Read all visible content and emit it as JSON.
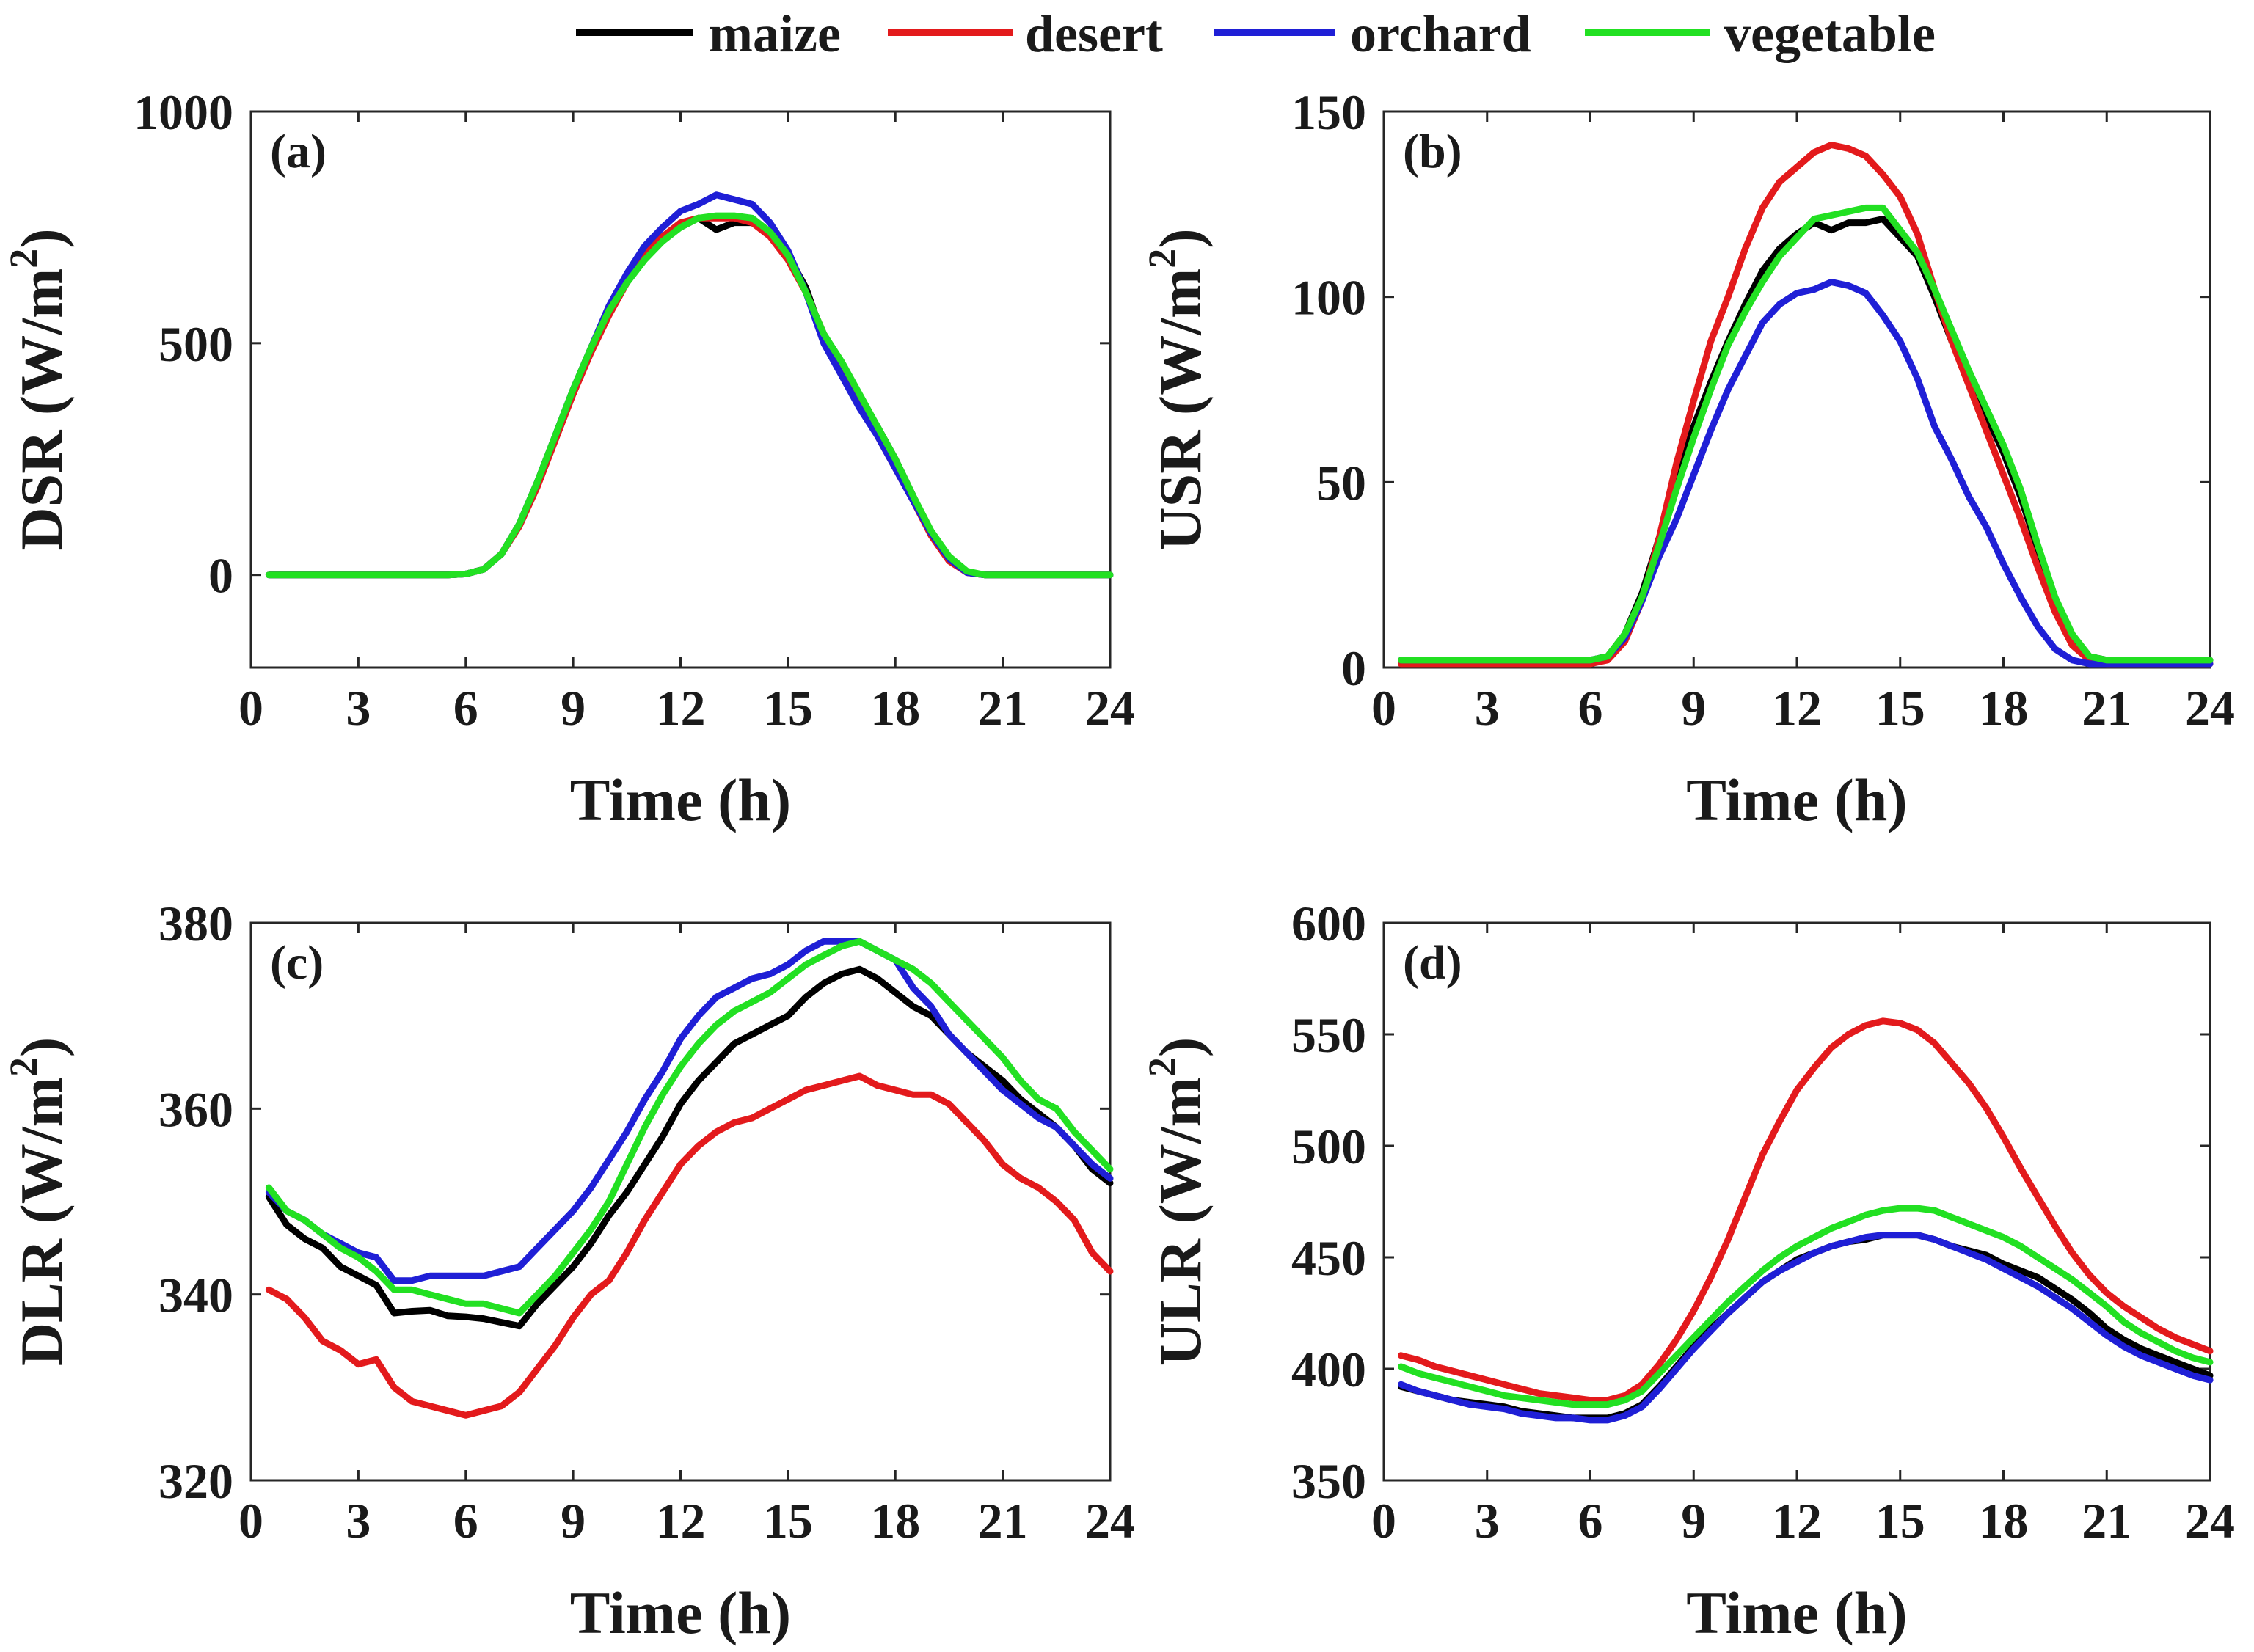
{
  "chart_data": [
    {
      "panel": "(a)",
      "type": "line",
      "ylabel_main": "DSR (W/m",
      "ylabel_sup": "2",
      "ylabel_end": ")",
      "xlabel": "Time (h)",
      "xlim": [
        0,
        24
      ],
      "ylim": [
        -200,
        1000
      ],
      "xticks": [
        0,
        3,
        6,
        9,
        12,
        15,
        18,
        21,
        24
      ],
      "yticks": [
        0,
        500,
        1000
      ],
      "x": [
        0.5,
        1,
        1.5,
        2,
        2.5,
        3,
        3.5,
        4,
        4.5,
        5,
        5.5,
        6,
        6.5,
        7,
        7.5,
        8,
        8.5,
        9,
        9.5,
        10,
        10.5,
        11,
        11.5,
        12,
        12.5,
        13,
        13.5,
        14,
        14.5,
        15,
        15.5,
        16,
        16.5,
        17,
        17.5,
        18,
        18.5,
        19,
        19.5,
        20,
        20.5,
        21,
        21.5,
        22,
        22.5,
        23,
        23.5,
        24
      ],
      "series": [
        {
          "name": "maize",
          "values": [
            0,
            0,
            0,
            0,
            0,
            0,
            0,
            0,
            0,
            0,
            0,
            2,
            12,
            45,
            110,
            200,
            300,
            400,
            490,
            570,
            640,
            700,
            730,
            750,
            770,
            745,
            760,
            760,
            740,
            690,
            620,
            510,
            450,
            380,
            320,
            250,
            170,
            90,
            35,
            5,
            0,
            0,
            0,
            0,
            0,
            0,
            0,
            0
          ]
        },
        {
          "name": "desert",
          "values": [
            0,
            0,
            0,
            0,
            0,
            0,
            0,
            0,
            0,
            0,
            0,
            2,
            12,
            45,
            105,
            190,
            290,
            390,
            480,
            560,
            630,
            690,
            730,
            760,
            770,
            770,
            770,
            760,
            730,
            680,
            610,
            520,
            450,
            370,
            300,
            230,
            160,
            85,
            30,
            5,
            0,
            0,
            0,
            0,
            0,
            0,
            0,
            0
          ]
        },
        {
          "name": "orchard",
          "values": [
            0,
            0,
            0,
            0,
            0,
            0,
            0,
            0,
            0,
            0,
            0,
            2,
            12,
            45,
            110,
            200,
            300,
            400,
            490,
            580,
            650,
            710,
            750,
            785,
            800,
            820,
            810,
            800,
            760,
            700,
            610,
            500,
            430,
            360,
            300,
            230,
            160,
            90,
            35,
            5,
            0,
            0,
            0,
            0,
            0,
            0,
            0,
            0
          ]
        },
        {
          "name": "vegetable",
          "values": [
            0,
            0,
            0,
            0,
            0,
            0,
            0,
            0,
            0,
            0,
            0,
            2,
            12,
            45,
            110,
            200,
            300,
            400,
            490,
            570,
            630,
            680,
            720,
            750,
            770,
            775,
            775,
            770,
            740,
            690,
            610,
            520,
            460,
            390,
            320,
            250,
            170,
            95,
            40,
            8,
            0,
            0,
            0,
            0,
            0,
            0,
            0,
            0
          ]
        }
      ]
    },
    {
      "panel": "(b)",
      "type": "line",
      "ylabel_main": "USR (W/m",
      "ylabel_sup": "2",
      "ylabel_end": ")",
      "xlabel": "Time (h)",
      "xlim": [
        0,
        24
      ],
      "ylim": [
        0,
        150
      ],
      "xticks": [
        0,
        3,
        6,
        9,
        12,
        15,
        18,
        21,
        24
      ],
      "yticks": [
        0,
        50,
        100,
        150
      ],
      "x": [
        0.5,
        1,
        1.5,
        2,
        2.5,
        3,
        3.5,
        4,
        4.5,
        5,
        5.5,
        6,
        6.5,
        7,
        7.5,
        8,
        8.5,
        9,
        9.5,
        10,
        10.5,
        11,
        11.5,
        12,
        12.5,
        13,
        13.5,
        14,
        14.5,
        15,
        15.5,
        16,
        16.5,
        17,
        17.5,
        18,
        18.5,
        19,
        19.5,
        20,
        20.5,
        21,
        21.5,
        22,
        22.5,
        23,
        23.5,
        24
      ],
      "series": [
        {
          "name": "maize",
          "values": [
            2,
            2,
            2,
            2,
            2,
            2,
            2,
            2,
            2,
            2,
            2,
            2,
            3,
            9,
            20,
            35,
            50,
            65,
            77,
            88,
            98,
            107,
            113,
            117,
            120,
            118,
            120,
            120,
            121,
            116,
            111,
            100,
            88,
            78,
            68,
            58,
            46,
            32,
            18,
            8,
            3,
            2,
            2,
            2,
            2,
            2,
            2,
            2
          ]
        },
        {
          "name": "desert",
          "values": [
            1,
            1,
            1,
            1,
            1,
            1,
            1,
            1,
            1,
            1,
            1,
            1,
            2,
            7,
            18,
            35,
            55,
            72,
            88,
            100,
            113,
            124,
            131,
            135,
            139,
            141,
            140,
            138,
            133,
            127,
            117,
            102,
            88,
            76,
            64,
            52,
            40,
            27,
            15,
            6,
            2,
            1,
            1,
            1,
            1,
            1,
            1,
            1
          ]
        },
        {
          "name": "orchard",
          "values": [
            2,
            2,
            2,
            2,
            2,
            2,
            2,
            2,
            2,
            2,
            2,
            2,
            3,
            8,
            18,
            30,
            40,
            52,
            64,
            75,
            84,
            93,
            98,
            101,
            102,
            104,
            103,
            101,
            95,
            88,
            78,
            65,
            56,
            46,
            38,
            28,
            19,
            11,
            5,
            2,
            1,
            1,
            1,
            1,
            1,
            1,
            1,
            1
          ]
        },
        {
          "name": "vegetable",
          "values": [
            2,
            2,
            2,
            2,
            2,
            2,
            2,
            2,
            2,
            2,
            2,
            2,
            3,
            9,
            19,
            33,
            48,
            62,
            75,
            87,
            96,
            104,
            111,
            116,
            121,
            122,
            123,
            124,
            124,
            118,
            112,
            102,
            91,
            80,
            70,
            60,
            48,
            33,
            19,
            9,
            3,
            2,
            2,
            2,
            2,
            2,
            2,
            2
          ]
        }
      ]
    },
    {
      "panel": "(c)",
      "type": "line",
      "ylabel_main": "DLR (W/m",
      "ylabel_sup": "2",
      "ylabel_end": ")",
      "xlabel": "Time (h)",
      "xlim": [
        0,
        24
      ],
      "ylim": [
        320,
        380
      ],
      "xticks": [
        0,
        3,
        6,
        9,
        12,
        15,
        18,
        21,
        24
      ],
      "yticks": [
        320,
        340,
        360,
        380
      ],
      "x": [
        0.5,
        1,
        1.5,
        2,
        2.5,
        3,
        3.5,
        4,
        4.5,
        5,
        5.5,
        6,
        6.5,
        7,
        7.5,
        8,
        8.5,
        9,
        9.5,
        10,
        10.5,
        11,
        11.5,
        12,
        12.5,
        13,
        13.5,
        14,
        14.5,
        15,
        15.5,
        16,
        16.5,
        17,
        17.5,
        18,
        18.5,
        19,
        19.5,
        20,
        20.5,
        21,
        21.5,
        22,
        22.5,
        23,
        23.5,
        24
      ],
      "series": [
        {
          "name": "maize",
          "values": [
            350.5,
            347.5,
            346,
            345,
            343,
            342,
            341,
            338,
            338.2,
            338.3,
            337.7,
            337.6,
            337.4,
            337,
            336.6,
            339,
            341,
            343,
            345.5,
            348.5,
            351,
            354,
            357,
            360.5,
            363,
            365,
            367,
            368,
            369,
            370,
            372,
            373.5,
            374.5,
            375,
            374,
            372.5,
            371,
            370,
            368,
            366,
            364.5,
            363,
            361,
            359.5,
            358,
            356,
            353.5,
            352
          ]
        },
        {
          "name": "desert",
          "values": [
            340.5,
            339.5,
            337.5,
            335,
            334,
            332.5,
            333,
            330,
            328.5,
            328,
            327.5,
            327,
            327.5,
            328,
            329.5,
            332,
            334.5,
            337.5,
            340,
            341.5,
            344.5,
            348,
            351,
            354,
            356,
            357.5,
            358.5,
            359,
            360,
            361,
            362,
            362.5,
            363,
            363.5,
            362.5,
            362,
            361.5,
            361.5,
            360.5,
            358.5,
            356.5,
            354,
            352.5,
            351.5,
            350,
            348,
            344.5,
            342.5
          ]
        },
        {
          "name": "orchard",
          "values": [
            351,
            349,
            348,
            346.5,
            345.5,
            344.5,
            344,
            341.5,
            341.5,
            342,
            342,
            342,
            342,
            342.5,
            343,
            345,
            347,
            349,
            351.5,
            354.5,
            357.5,
            361,
            364,
            367.5,
            370,
            372,
            373,
            374,
            374.5,
            375.5,
            377,
            378,
            378,
            378,
            377,
            376,
            373,
            371,
            368,
            366,
            364,
            362,
            360.5,
            359,
            358,
            356,
            354,
            352.5
          ]
        },
        {
          "name": "vegetable",
          "values": [
            351.5,
            349,
            348,
            346.5,
            345,
            344,
            342.5,
            340.5,
            340.5,
            340,
            339.5,
            339,
            339,
            338.5,
            338,
            340,
            342,
            344.5,
            347,
            350,
            354,
            358,
            361.5,
            364.5,
            367,
            369,
            370.5,
            371.5,
            372.5,
            374,
            375.5,
            376.5,
            377.5,
            378,
            377,
            376,
            375,
            373.5,
            371.5,
            369.5,
            367.5,
            365.5,
            363,
            361,
            360,
            357.5,
            355.5,
            353.5
          ]
        }
      ]
    },
    {
      "panel": "(d)",
      "type": "line",
      "ylabel_main": "ULR (W/m",
      "ylabel_sup": "2",
      "ylabel_end": ")",
      "xlabel": "Time (h)",
      "xlim": [
        0,
        24
      ],
      "ylim": [
        350,
        600
      ],
      "xticks": [
        0,
        3,
        6,
        9,
        12,
        15,
        18,
        21,
        24
      ],
      "yticks": [
        350,
        400,
        450,
        500,
        550,
        600
      ],
      "x": [
        0.5,
        1,
        1.5,
        2,
        2.5,
        3,
        3.5,
        4,
        4.5,
        5,
        5.5,
        6,
        6.5,
        7,
        7.5,
        8,
        8.5,
        9,
        9.5,
        10,
        10.5,
        11,
        11.5,
        12,
        12.5,
        13,
        13.5,
        14,
        14.5,
        15,
        15.5,
        16,
        16.5,
        17,
        17.5,
        18,
        18.5,
        19,
        19.5,
        20,
        20.5,
        21,
        21.5,
        22,
        22.5,
        23,
        23.5,
        24
      ],
      "series": [
        {
          "name": "maize",
          "values": [
            392,
            390,
            388,
            386,
            385,
            384,
            383,
            381,
            380,
            379,
            378,
            378,
            378,
            380,
            384,
            392,
            401,
            410,
            418,
            425,
            432,
            439,
            444,
            449,
            452,
            455,
            457,
            458,
            460,
            460,
            460,
            458,
            455,
            453,
            451,
            447,
            444,
            441,
            436,
            431,
            425,
            418,
            413,
            409,
            406,
            403,
            400,
            397
          ]
        },
        {
          "name": "desert",
          "values": [
            406,
            404,
            401,
            399,
            397,
            395,
            393,
            391,
            389,
            388,
            387,
            386,
            386,
            388,
            393,
            402,
            413,
            426,
            441,
            458,
            477,
            496,
            511,
            525,
            535,
            544,
            550,
            554,
            556,
            555,
            552,
            546,
            537,
            528,
            517,
            504,
            490,
            477,
            464,
            452,
            442,
            434,
            428,
            423,
            418,
            414,
            411,
            408
          ]
        },
        {
          "name": "orchard",
          "values": [
            393,
            390,
            388,
            386,
            384,
            383,
            382,
            380,
            379,
            378,
            378,
            377,
            377,
            379,
            383,
            391,
            400,
            409,
            417,
            425,
            432,
            439,
            444,
            448,
            452,
            455,
            457,
            459,
            460,
            460,
            460,
            458,
            455,
            452,
            449,
            445,
            441,
            437,
            432,
            427,
            421,
            415,
            410,
            406,
            403,
            400,
            397,
            395
          ]
        },
        {
          "name": "vegetable",
          "values": [
            401,
            398,
            396,
            394,
            392,
            390,
            388,
            387,
            386,
            385,
            384,
            384,
            384,
            386,
            390,
            398,
            406,
            414,
            422,
            430,
            437,
            444,
            450,
            455,
            459,
            463,
            466,
            469,
            471,
            472,
            472,
            471,
            468,
            465,
            462,
            459,
            455,
            450,
            445,
            440,
            434,
            428,
            421,
            416,
            412,
            408,
            405,
            403
          ]
        }
      ]
    }
  ],
  "legend": [
    {
      "name": "maize",
      "color": "#000000"
    },
    {
      "name": "desert",
      "color": "#e31a1c"
    },
    {
      "name": "orchard",
      "color": "#1f1fd6"
    },
    {
      "name": "vegetable",
      "color": "#22e022"
    }
  ]
}
